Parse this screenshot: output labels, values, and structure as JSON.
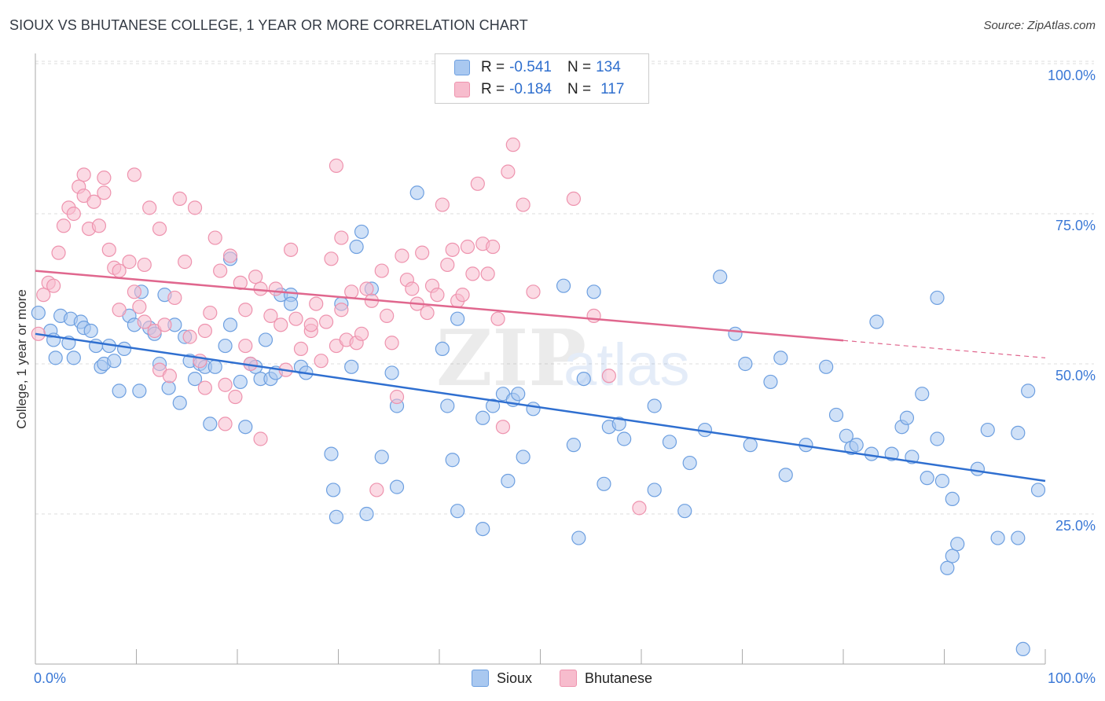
{
  "title": "SIOUX VS BHUTANESE COLLEGE, 1 YEAR OR MORE CORRELATION CHART",
  "source": "Source: ZipAtlas.com",
  "watermark": {
    "zip": "ZIP",
    "atlas": "atlas"
  },
  "legend": {
    "r_label": "R =",
    "n_label": "N =",
    "rows": [
      {
        "r": "-0.541",
        "n": "134"
      },
      {
        "r": "-0.184",
        "n": "117"
      }
    ]
  },
  "colors": {
    "sioux_fill": "#a9c8f0",
    "sioux_stroke": "#6d9fe0",
    "sioux_line": "#2f6fd0",
    "bhutanese_fill": "#f7bccd",
    "bhutanese_stroke": "#ee93ae",
    "bhutanese_line": "#e0678e",
    "tick_text": "#3a78d6",
    "grid": "#dddddd"
  },
  "chart_data": {
    "type": "scatter",
    "title": "SIOUX VS BHUTANESE COLLEGE, 1 YEAR OR MORE CORRELATION CHART",
    "xlabel": "",
    "ylabel": "College, 1 year or more",
    "xlim": [
      0,
      100
    ],
    "ylim": [
      0,
      105
    ],
    "x_tick_labels": [
      "0.0%",
      "100.0%"
    ],
    "y_ticks": [
      25,
      50,
      75,
      100
    ],
    "y_tick_labels": [
      "25.0%",
      "50.0%",
      "75.0%",
      "100.0%"
    ],
    "grid": "horizontal dashed",
    "legend_position": "bottom-center",
    "series": [
      {
        "name": "Sioux",
        "r": -0.541,
        "n": 134,
        "trend": {
          "x": [
            0,
            100
          ],
          "y": [
            55.0,
            30.5
          ],
          "dashed_from": null
        },
        "points": [
          [
            0.3,
            58.5
          ],
          [
            1.5,
            55.5
          ],
          [
            1.8,
            54
          ],
          [
            2.5,
            58
          ],
          [
            2,
            51
          ],
          [
            3.5,
            57.5
          ],
          [
            3.3,
            53.5
          ],
          [
            3.8,
            51
          ],
          [
            4.5,
            57
          ],
          [
            4.8,
            56
          ],
          [
            5.5,
            55.5
          ],
          [
            6,
            53
          ],
          [
            6.5,
            49.5
          ],
          [
            6.8,
            50
          ],
          [
            7.3,
            53
          ],
          [
            7.8,
            50.5
          ],
          [
            8.3,
            45.5
          ],
          [
            8.8,
            52.5
          ],
          [
            9.3,
            58
          ],
          [
            9.8,
            56.5
          ],
          [
            10.3,
            45.5
          ],
          [
            10.5,
            62
          ],
          [
            11.3,
            56
          ],
          [
            11.8,
            55
          ],
          [
            12.3,
            50
          ],
          [
            12.8,
            61.5
          ],
          [
            13.2,
            46
          ],
          [
            13.8,
            56.5
          ],
          [
            14.3,
            43.5
          ],
          [
            14.8,
            54.5
          ],
          [
            15.3,
            50.5
          ],
          [
            15.8,
            47.5
          ],
          [
            16.3,
            50
          ],
          [
            16.8,
            49.5
          ],
          [
            17.3,
            40
          ],
          [
            17.8,
            49.5
          ],
          [
            18.8,
            53
          ],
          [
            19.3,
            56.5
          ],
          [
            19.3,
            67.5
          ],
          [
            20.3,
            47
          ],
          [
            20.8,
            39.5
          ],
          [
            21.3,
            50
          ],
          [
            21.8,
            49.5
          ],
          [
            22.3,
            47.5
          ],
          [
            22.8,
            54
          ],
          [
            23.3,
            47.5
          ],
          [
            23.8,
            48.5
          ],
          [
            24.3,
            61.5
          ],
          [
            25.3,
            61.5
          ],
          [
            25.3,
            60
          ],
          [
            26.3,
            49.5
          ],
          [
            26.8,
            48.5
          ],
          [
            29.3,
            35
          ],
          [
            29.5,
            29
          ],
          [
            29.8,
            24.5
          ],
          [
            30.3,
            60
          ],
          [
            31.3,
            49.5
          ],
          [
            31.8,
            69.5
          ],
          [
            32.3,
            72
          ],
          [
            32.8,
            25
          ],
          [
            33.3,
            62.5
          ],
          [
            34.3,
            34.5
          ],
          [
            35.3,
            48.5
          ],
          [
            35.8,
            29.5
          ],
          [
            35.8,
            43
          ],
          [
            37.8,
            78.5
          ],
          [
            40.3,
            52.5
          ],
          [
            40.8,
            43
          ],
          [
            41.3,
            34
          ],
          [
            41.8,
            57.5
          ],
          [
            41.8,
            25.5
          ],
          [
            44.3,
            41
          ],
          [
            44.3,
            22.5
          ],
          [
            45.3,
            43
          ],
          [
            46.3,
            45
          ],
          [
            46.8,
            30.5
          ],
          [
            47.3,
            44
          ],
          [
            47.8,
            45
          ],
          [
            48.3,
            34.5
          ],
          [
            49.3,
            42.5
          ],
          [
            52.3,
            63
          ],
          [
            53.3,
            36.5
          ],
          [
            53.8,
            21
          ],
          [
            54.3,
            47.5
          ],
          [
            55.3,
            62
          ],
          [
            56.3,
            30
          ],
          [
            56.8,
            39.5
          ],
          [
            57.8,
            40
          ],
          [
            58.3,
            37.5
          ],
          [
            61.3,
            43
          ],
          [
            61.3,
            29
          ],
          [
            62.8,
            37
          ],
          [
            64.8,
            33.5
          ],
          [
            64.3,
            25.5
          ],
          [
            66.3,
            39
          ],
          [
            67.8,
            64.5
          ],
          [
            69.3,
            55
          ],
          [
            70.3,
            50
          ],
          [
            70.8,
            36.5
          ],
          [
            72.8,
            47
          ],
          [
            73.8,
            51
          ],
          [
            74.3,
            31.5
          ],
          [
            76.3,
            36.5
          ],
          [
            78.3,
            49.5
          ],
          [
            79.3,
            41.5
          ],
          [
            80.3,
            38
          ],
          [
            80.8,
            36
          ],
          [
            81.3,
            36.5
          ],
          [
            82.8,
            35
          ],
          [
            83.3,
            57
          ],
          [
            84.8,
            35
          ],
          [
            85.8,
            39.5
          ],
          [
            86.3,
            41
          ],
          [
            86.8,
            34.5
          ],
          [
            87.8,
            45
          ],
          [
            88.3,
            31
          ],
          [
            89.3,
            61
          ],
          [
            89.3,
            37.5
          ],
          [
            89.8,
            30.5
          ],
          [
            90.3,
            16
          ],
          [
            90.8,
            18
          ],
          [
            90.8,
            27.5
          ],
          [
            91.3,
            20
          ],
          [
            93.3,
            32.5
          ],
          [
            94.3,
            39
          ],
          [
            95.3,
            21
          ],
          [
            97.3,
            21
          ],
          [
            97.3,
            38.5
          ],
          [
            98.3,
            45.5
          ],
          [
            99.3,
            29
          ],
          [
            97.8,
            2.5
          ]
        ]
      },
      {
        "name": "Bhutanese",
        "r": -0.184,
        "n": 117,
        "trend": {
          "x": [
            0,
            100
          ],
          "y": [
            65.5,
            51.0
          ],
          "dashed_from": 80
        },
        "points": [
          [
            0.3,
            55
          ],
          [
            0.8,
            61.5
          ],
          [
            1.3,
            63.5
          ],
          [
            1.8,
            63
          ],
          [
            2.3,
            68.5
          ],
          [
            2.8,
            73
          ],
          [
            3.3,
            76
          ],
          [
            3.8,
            75
          ],
          [
            4.3,
            79.5
          ],
          [
            4.8,
            81.5
          ],
          [
            4.8,
            78
          ],
          [
            5.3,
            72.5
          ],
          [
            5.8,
            77
          ],
          [
            6.3,
            73
          ],
          [
            6.8,
            81
          ],
          [
            6.8,
            78.5
          ],
          [
            7.3,
            69
          ],
          [
            7.8,
            66
          ],
          [
            8.3,
            59
          ],
          [
            8.3,
            65.5
          ],
          [
            9.3,
            67
          ],
          [
            9.8,
            81.5
          ],
          [
            9.8,
            62
          ],
          [
            10.3,
            59.5
          ],
          [
            10.8,
            66.5
          ],
          [
            10.8,
            57
          ],
          [
            11.3,
            76
          ],
          [
            11.8,
            55.5
          ],
          [
            12.3,
            72.5
          ],
          [
            12.3,
            49
          ],
          [
            12.8,
            56.5
          ],
          [
            13.3,
            48
          ],
          [
            13.8,
            61
          ],
          [
            14.3,
            77.5
          ],
          [
            14.8,
            67
          ],
          [
            15.3,
            54.5
          ],
          [
            15.8,
            76
          ],
          [
            16.3,
            50.5
          ],
          [
            16.8,
            55.5
          ],
          [
            16.8,
            46
          ],
          [
            17.3,
            58.5
          ],
          [
            17.8,
            71
          ],
          [
            18.3,
            65.5
          ],
          [
            18.8,
            46.5
          ],
          [
            18.8,
            40
          ],
          [
            19.3,
            68
          ],
          [
            19.8,
            44.5
          ],
          [
            20.3,
            63.5
          ],
          [
            20.8,
            59
          ],
          [
            20.8,
            53
          ],
          [
            21.3,
            50
          ],
          [
            21.8,
            64.5
          ],
          [
            22.3,
            62.5
          ],
          [
            22.3,
            37.5
          ],
          [
            23.3,
            58
          ],
          [
            23.8,
            62.5
          ],
          [
            24.3,
            56.5
          ],
          [
            24.8,
            49
          ],
          [
            25.3,
            69
          ],
          [
            25.8,
            57.5
          ],
          [
            26.3,
            52.5
          ],
          [
            27.3,
            55.5
          ],
          [
            27.3,
            56.5
          ],
          [
            27.8,
            60
          ],
          [
            28.3,
            50.5
          ],
          [
            28.8,
            57
          ],
          [
            29.3,
            67.5
          ],
          [
            29.8,
            53
          ],
          [
            29.8,
            83
          ],
          [
            30.3,
            71
          ],
          [
            30.3,
            59
          ],
          [
            30.8,
            54
          ],
          [
            31.3,
            62
          ],
          [
            31.8,
            53.5
          ],
          [
            32.3,
            55
          ],
          [
            32.8,
            62.5
          ],
          [
            33.3,
            60.5
          ],
          [
            33.8,
            29
          ],
          [
            34.3,
            65.5
          ],
          [
            34.8,
            58
          ],
          [
            35.3,
            53.5
          ],
          [
            35.8,
            44.5
          ],
          [
            36.3,
            68
          ],
          [
            36.8,
            64
          ],
          [
            37.3,
            62.5
          ],
          [
            37.8,
            60
          ],
          [
            38.3,
            68.5
          ],
          [
            38.8,
            58.5
          ],
          [
            39.3,
            63
          ],
          [
            39.8,
            61.5
          ],
          [
            40.3,
            76.5
          ],
          [
            40.8,
            66.5
          ],
          [
            41.3,
            69
          ],
          [
            41.8,
            60.5
          ],
          [
            42.3,
            61.5
          ],
          [
            42.8,
            69.5
          ],
          [
            43.3,
            65
          ],
          [
            43.8,
            80
          ],
          [
            44.3,
            70
          ],
          [
            44.8,
            65
          ],
          [
            45.3,
            69.5
          ],
          [
            45.8,
            57.5
          ],
          [
            46.3,
            39.5
          ],
          [
            46.8,
            82
          ],
          [
            47.3,
            86.5
          ],
          [
            48.3,
            76.5
          ],
          [
            49.3,
            62
          ],
          [
            53.3,
            77.5
          ],
          [
            55.3,
            58
          ],
          [
            56.8,
            48
          ],
          [
            59.8,
            26
          ]
        ]
      }
    ]
  },
  "bottom_legend": [
    "Sioux",
    "Bhutanese"
  ],
  "y_axis_label": "College, 1 year or more"
}
